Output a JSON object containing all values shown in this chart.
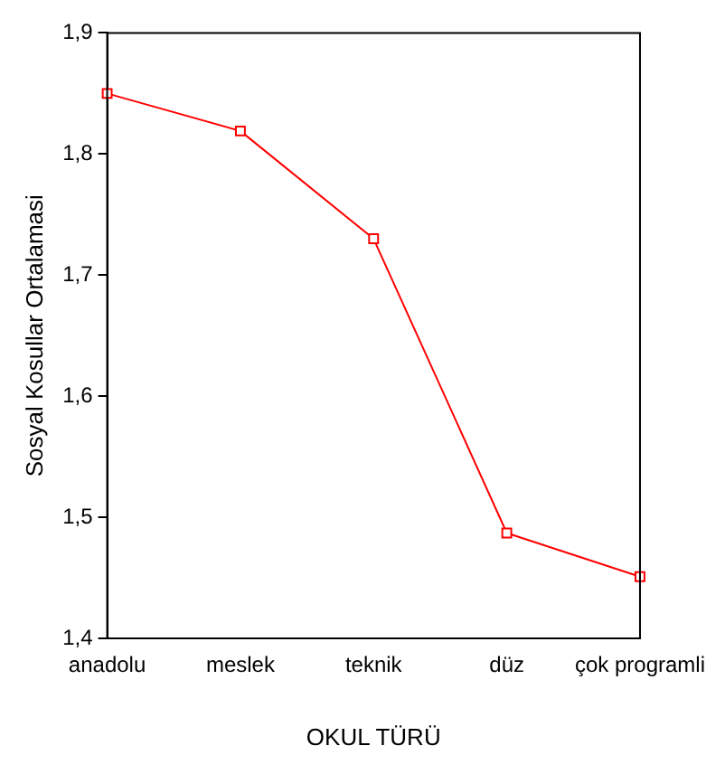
{
  "chart_data": {
    "type": "line",
    "xlabel": "OKUL TÜRÜ",
    "ylabel": "Sosyal Kosullar Ortalamasi",
    "categories": [
      "anadolu",
      "meslek",
      "teknik",
      "düz",
      "çok programli"
    ],
    "series": [
      {
        "color": "#ff0000",
        "values": [
          1.85,
          1.819,
          1.73,
          1.487,
          1.451
        ]
      }
    ],
    "ylim": [
      1.4,
      1.9
    ],
    "yticks": [
      {
        "value": 1.4,
        "label": "1,4"
      },
      {
        "value": 1.5,
        "label": "1,5"
      },
      {
        "value": 1.6,
        "label": "1,6"
      },
      {
        "value": 1.7,
        "label": "1,7"
      },
      {
        "value": 1.8,
        "label": "1,8"
      },
      {
        "value": 1.9,
        "label": "1,9"
      }
    ],
    "marker": "square",
    "grid": false,
    "legend": false
  }
}
